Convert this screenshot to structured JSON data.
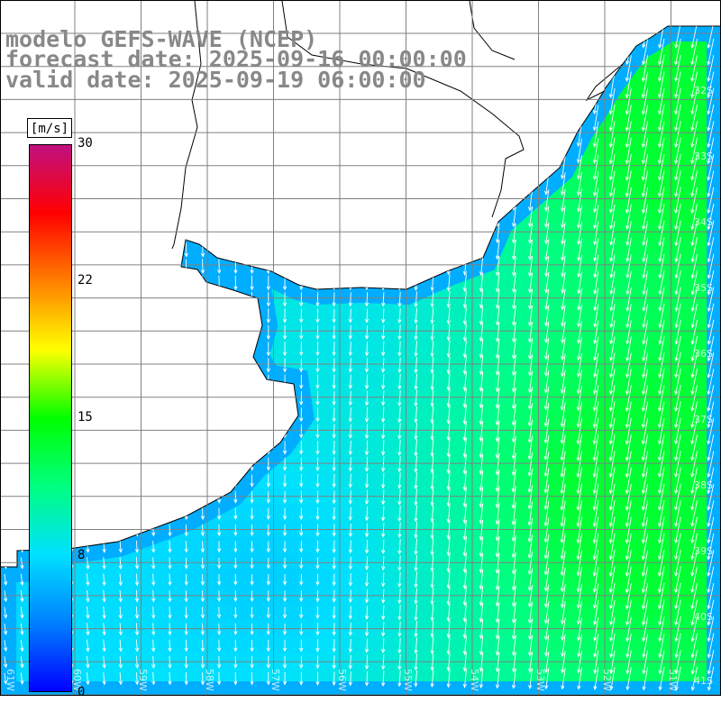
{
  "titles": {
    "line1": "modelo GEFS-WAVE (NCEP)",
    "line2": "forecast date: 2025-09-16 00:00:00",
    "line3": "valid date: 2025-09-19 06:00:00"
  },
  "legend": {
    "unit": "[m/s]",
    "ticks": [
      "30",
      "22",
      "15",
      "8",
      "0"
    ],
    "range": [
      0,
      30
    ],
    "colors": [
      "#0000ff",
      "#0080ff",
      "#00e0ff",
      "#00ff80",
      "#00ff00",
      "#ffff00",
      "#ff8000",
      "#ff0000",
      "#c01080"
    ]
  },
  "axes": {
    "lon_labels": [
      "61W",
      "60W",
      "59W",
      "58W",
      "57W",
      "56W",
      "55W",
      "54W",
      "53W",
      "52W",
      "51W"
    ],
    "lat_labels": [
      "32S",
      "33S",
      "34S",
      "35S",
      "36S",
      "37S",
      "38S",
      "39S",
      "40S",
      "41S"
    ]
  },
  "field": {
    "variable": "wind speed",
    "arrow_direction": "southward",
    "land_color": "#ffffff",
    "coast_color": "#000000",
    "grid_color": "#808080"
  }
}
